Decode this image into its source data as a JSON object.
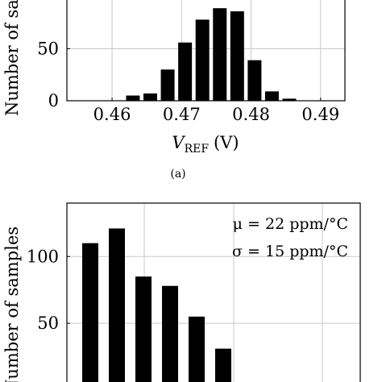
{
  "chart_data": [
    {
      "type": "bar",
      "xlabel_main": "V",
      "xlabel_sub": "REF",
      "xlabel_unit": "(V)",
      "ylabel": "Number of samples",
      "caption": "(a)",
      "x_ticks": [
        "0.46",
        "0.47",
        "0.48",
        "0.49"
      ],
      "y_ticks": [
        "0",
        "50"
      ],
      "x_tick_values": [
        0.46,
        0.47,
        0.48,
        0.49
      ],
      "y_tick_values": [
        0,
        50
      ],
      "xlim": [
        0.4535,
        0.4935
      ],
      "ylim": [
        0,
        100
      ],
      "grid": true,
      "x": [
        0.4605,
        0.463,
        0.4655,
        0.468,
        0.4705,
        0.473,
        0.4755,
        0.478,
        0.4805,
        0.483,
        0.4855,
        0.488,
        0.4905
      ],
      "values": [
        0,
        5,
        7,
        30,
        56,
        78,
        89,
        86,
        39,
        9,
        2,
        0,
        0
      ]
    },
    {
      "type": "bar",
      "ylabel": "Number of samples",
      "y_ticks": [
        "50",
        "100"
      ],
      "y_tick_values": [
        50,
        100
      ],
      "ylim": [
        0,
        140
      ],
      "grid": true,
      "annotations": [
        "μ = 22 ppm/°C",
        "σ = 15 ppm/°C"
      ],
      "values": [
        110,
        121,
        85,
        78,
        55,
        31
      ]
    }
  ]
}
